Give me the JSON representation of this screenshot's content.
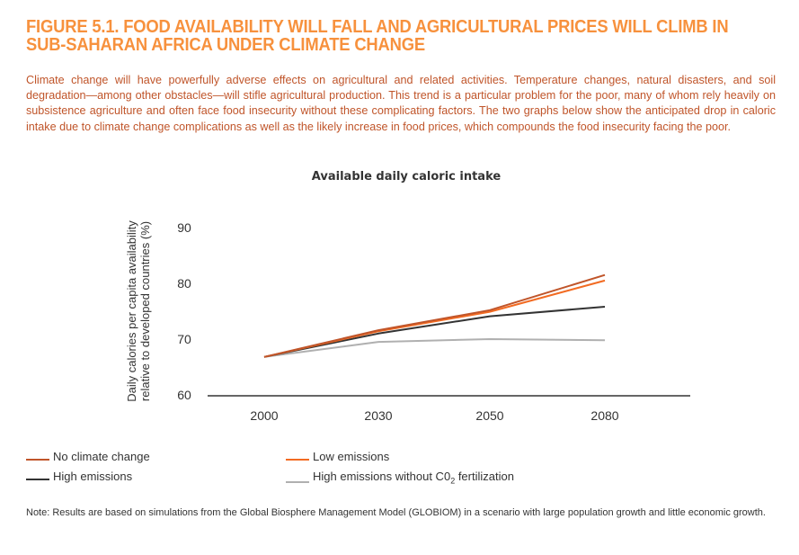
{
  "figure": {
    "title_line1": "FIGURE 5.1. FOOD AVAILABILITY WILL FALL AND AGRICULTURAL PRICES WILL CLIMB IN",
    "title_line2": "SUB-SAHARAN AFRICA UNDER CLIMATE CHANGE",
    "intro": "Climate change will have powerfully adverse effects on agricultural and related activities. Temperature changes, natural disasters, and soil degradation—among other obstacles—will stifle agricultural production. This trend is a particular problem for the poor, many of whom rely heavily on subsistence agriculture and often face food insecurity without these complicating factors. The two graphs below show the anticipated drop in caloric intake due to climate change complications as well as the likely increase in food prices, which compounds the food insecurity facing the poor.",
    "note": "Note: Results are based on simulations from the Global Biosphere Management Model (GLOBIOM) in a scenario with large population growth and little economic growth.",
    "colors": {
      "title": "#f7913d",
      "intro": "#c0552a"
    }
  },
  "chart_data": {
    "type": "line",
    "title": "Available daily caloric intake",
    "xlabel": "",
    "ylabel_line1": "Daily calories per capita availability",
    "ylabel_line2": "relative to developed countries (%)",
    "categories": [
      "2000",
      "2030",
      "2050",
      "2080"
    ],
    "yticks": [
      "60",
      "70",
      "80",
      "90"
    ],
    "ylim": [
      60,
      90
    ],
    "grid": false,
    "legend_position": "bottom",
    "series": [
      {
        "name": "No climate change",
        "color": "#c0552a",
        "values": [
          66.8,
          71.6,
          75.2,
          81.5
        ]
      },
      {
        "name": "Low emissions",
        "color": "#f26b22",
        "values": [
          66.8,
          71.4,
          74.9,
          80.5
        ]
      },
      {
        "name": "High emissions",
        "color": "#333333",
        "values": [
          66.8,
          71.0,
          74.1,
          75.8
        ]
      },
      {
        "name": "High emissions without C0₂ fertilization",
        "color": "#b0b0b0",
        "values": [
          66.8,
          69.5,
          70.0,
          69.8
        ]
      }
    ],
    "legend": [
      {
        "label": "No climate change",
        "color": "#c0552a"
      },
      {
        "label": "Low emissions",
        "color": "#f26b22"
      },
      {
        "label": "High emissions",
        "color": "#333333"
      },
      {
        "label_main": "High emissions without C0",
        "label_sub": "2",
        "label_tail": " fertilization",
        "color": "#b0b0b0"
      }
    ]
  }
}
